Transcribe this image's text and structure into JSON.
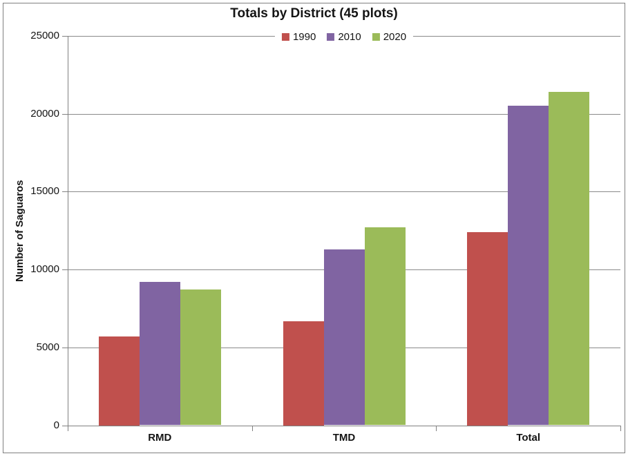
{
  "chart_data": {
    "type": "bar",
    "title": "Totals by District (45 plots)",
    "ylabel": "Number of Saguaros",
    "xlabel": "",
    "categories": [
      "RMD",
      "TMD",
      "Total"
    ],
    "series": [
      {
        "name": "1990",
        "color": "#C0504D",
        "values": [
          5700,
          6700,
          12400
        ]
      },
      {
        "name": "2010",
        "color": "#8064A2",
        "values": [
          9200,
          11300,
          20500
        ]
      },
      {
        "name": "2020",
        "color": "#9BBB59",
        "values": [
          8700,
          12700,
          21400
        ]
      }
    ],
    "ylim": [
      0,
      25000
    ],
    "ytick_step": 5000,
    "ytick_labels": [
      "0",
      "5000",
      "10000",
      "15000",
      "20000",
      "25000"
    ],
    "grid": true,
    "legend_position": "top-center"
  },
  "colors": {
    "gridline": "#898989",
    "axis": "#808080",
    "border": "#7f7f7f",
    "text": "#141414",
    "background": "#ffffff"
  }
}
